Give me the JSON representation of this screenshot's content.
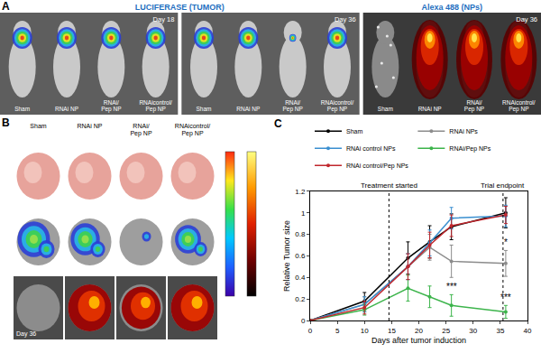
{
  "panels": {
    "A": {
      "label": "A",
      "groups": [
        {
          "title": "LUCIFERASE (TUMOR)",
          "days": [
            "Day 18",
            "Day 36"
          ]
        },
        {
          "title": "Alexa 488 (NPs)",
          "days": [
            "Day 36"
          ]
        }
      ],
      "mice": [
        "Sham",
        "RNAi NP",
        "RNAi/ Pep NP",
        "RNAicontrol/ Pep NP"
      ]
    },
    "B": {
      "label": "B",
      "columns": [
        "Sham",
        "RNAi NP",
        "RNAi/ Pep NP",
        "RNAicontrol/ Pep NP"
      ],
      "day": "Day 36"
    }
  },
  "chart_data": {
    "label": "C",
    "type": "line",
    "marker": "circle",
    "x": [
      0,
      10,
      18,
      22,
      26,
      36
    ],
    "series": [
      {
        "name": "Sham",
        "color": "#000000",
        "values": [
          0,
          0.18,
          0.58,
          0.73,
          0.87,
          1.0
        ],
        "errors": [
          0,
          0.08,
          0.15,
          0.15,
          0.12,
          0.14
        ]
      },
      {
        "name": "RNAi NPs",
        "color": "#8c8c8c",
        "values": [
          0,
          0.15,
          0.5,
          0.68,
          0.55,
          0.53
        ],
        "errors": [
          0,
          0.07,
          0.12,
          0.12,
          0.15,
          0.12
        ]
      },
      {
        "name": "RNAi control NPs",
        "color": "#3a8fd0",
        "values": [
          0,
          0.15,
          0.5,
          0.72,
          0.95,
          0.97
        ],
        "errors": [
          0,
          0.07,
          0.12,
          0.12,
          0.1,
          0.1
        ]
      },
      {
        "name": "RNAi/Pep NPs",
        "color": "#3cb44b",
        "values": [
          0,
          0.1,
          0.3,
          0.22,
          0.14,
          0.08
        ],
        "errors": [
          0,
          0.05,
          0.12,
          0.1,
          0.1,
          0.06
        ]
      },
      {
        "name": "RNAi control/Pep NPs",
        "color": "#c0272d",
        "values": [
          0,
          0.12,
          0.5,
          0.7,
          0.88,
          0.98
        ],
        "errors": [
          0,
          0.06,
          0.12,
          0.12,
          0.1,
          0.08
        ]
      }
    ],
    "xlabel": "Days after tumor induction",
    "ylabel": "Relative Tumor size",
    "xlim": [
      0,
      40
    ],
    "xticks": [
      0,
      5,
      10,
      15,
      20,
      25,
      30,
      35,
      40
    ],
    "ylim": [
      0,
      1.2
    ],
    "yticks": [
      0,
      0.2,
      0.4,
      0.6,
      0.8,
      1,
      1.2
    ],
    "grid": false,
    "legend": "top",
    "vlines": [
      {
        "x": 14.5,
        "text": "Treatment started"
      },
      {
        "x": 35.5,
        "text": "Trial endpoint"
      }
    ],
    "annotations": [
      {
        "text": "*",
        "x": 36,
        "y": 0.66
      },
      {
        "text": "***",
        "x": 26,
        "y": 0.25
      },
      {
        "text": "***",
        "x": 36,
        "y": 0.15
      }
    ]
  }
}
